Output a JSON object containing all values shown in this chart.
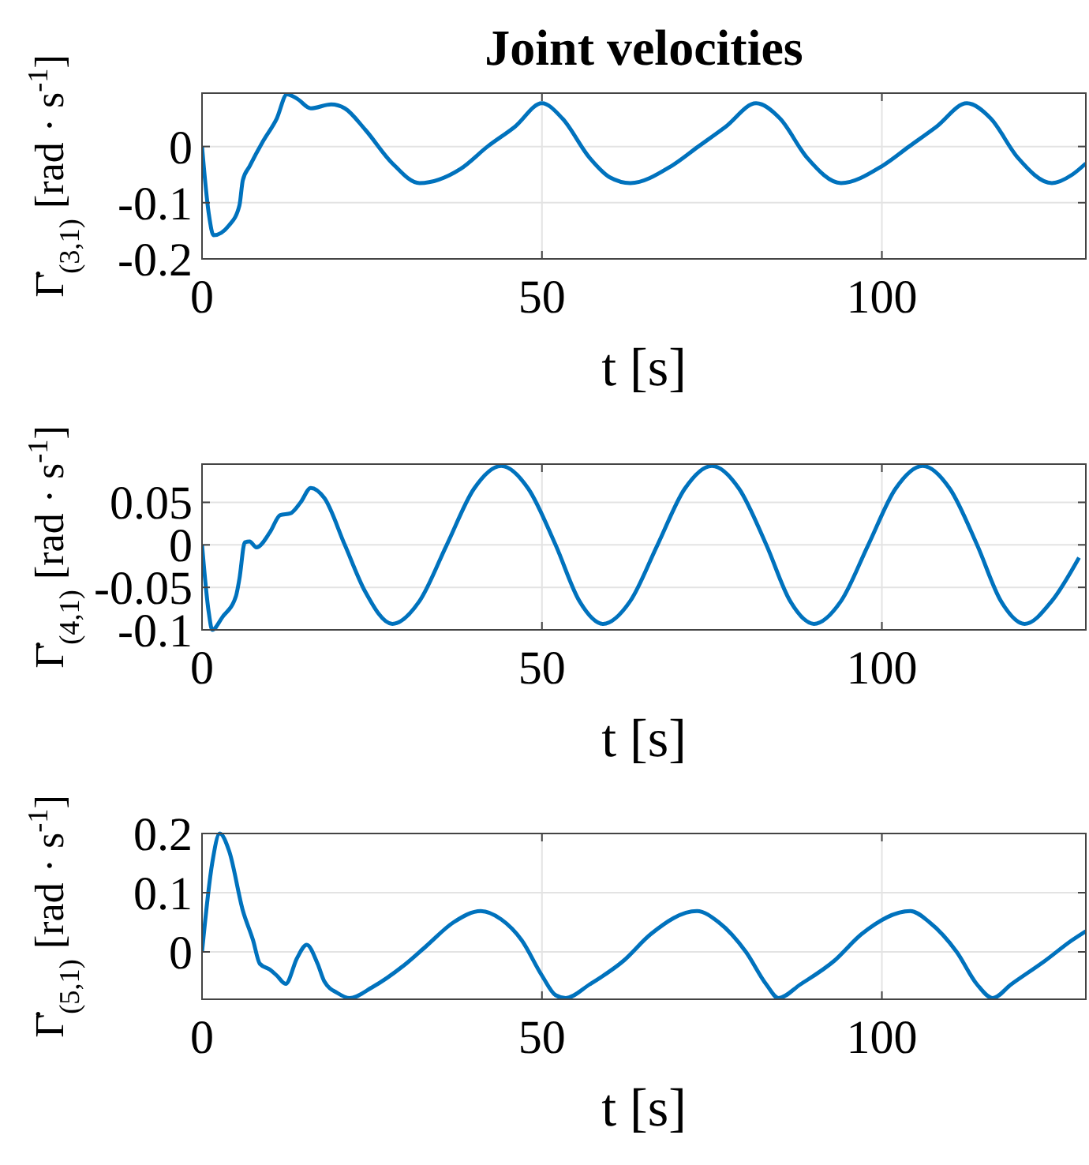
{
  "chart_data": [
    {
      "type": "line",
      "title": "Joint velocities",
      "xlabel": "t [s]",
      "ylabel": "Γ̇$_{(3,1)}$ [rad · s$^{-1}$]",
      "xlim": [
        0,
        130
      ],
      "xticks": [
        0,
        50,
        100
      ],
      "ylim": [
        -0.2,
        0.095
      ],
      "yticks": [
        -0.2,
        -0.1,
        0
      ],
      "grid": true,
      "series": [
        {
          "color": "#0072bd",
          "x": [
            0,
            1,
            1.7,
            4,
            5.5,
            6,
            7,
            9,
            11,
            12.5,
            14,
            16,
            19,
            21,
            24,
            28,
            32,
            38,
            42,
            46,
            50,
            53,
            57,
            60,
            63,
            69,
            73,
            77,
            81.5,
            85,
            89,
            94,
            100,
            104,
            108,
            112.5,
            116,
            120,
            125,
            128,
            130
          ],
          "values": [
            0,
            -0.12,
            -0.158,
            -0.14,
            -0.105,
            -0.06,
            -0.035,
            0.01,
            0.05,
            0.093,
            0.085,
            0.068,
            0.075,
            0.068,
            0.03,
            -0.03,
            -0.065,
            -0.04,
            0,
            0.035,
            0.077,
            0.05,
            -0.02,
            -0.055,
            -0.065,
            -0.035,
            0,
            0.035,
            0.077,
            0.05,
            -0.02,
            -0.065,
            -0.035,
            0,
            0.035,
            0.077,
            0.05,
            -0.02,
            -0.065,
            -0.05,
            -0.03
          ]
        }
      ]
    },
    {
      "type": "line",
      "xlabel": "t [s]",
      "ylabel": "Γ̇$_{(4,1)}$ [rad · s$^{-1}$]",
      "xlim": [
        0,
        130
      ],
      "xticks": [
        0,
        50,
        100
      ],
      "ylim": [
        -0.1,
        0.095
      ],
      "yticks": [
        -0.1,
        -0.05,
        0,
        0.05
      ],
      "grid": true,
      "series": [
        {
          "color": "#0072bd",
          "x": [
            0,
            1,
            1.5,
            3,
            5,
            5.5,
            6.3,
            7,
            8,
            10,
            11.5,
            13,
            14.5,
            16,
            18,
            21,
            24,
            28,
            32,
            36,
            40,
            44,
            48,
            52,
            55.5,
            59,
            63,
            67,
            71,
            75,
            79,
            83,
            86.5,
            90,
            94,
            98,
            102,
            106,
            110,
            114,
            117.5,
            121,
            125,
            129
          ],
          "values": [
            0,
            -0.08,
            -0.1,
            -0.085,
            -0.06,
            -0.04,
            0.003,
            0.004,
            -0.003,
            0.015,
            0.035,
            0.037,
            0.05,
            0.067,
            0.055,
            0,
            -0.055,
            -0.093,
            -0.066,
            0,
            0.066,
            0.093,
            0.066,
            0,
            -0.066,
            -0.093,
            -0.066,
            0,
            0.066,
            0.093,
            0.066,
            0,
            -0.066,
            -0.093,
            -0.066,
            0,
            0.066,
            0.093,
            0.066,
            0,
            -0.066,
            -0.093,
            -0.066,
            -0.015
          ]
        }
      ]
    },
    {
      "type": "line",
      "xlabel": "t [s]",
      "ylabel": "Γ̇$_{(5,1)}$ [rad · s$^{-1}$]",
      "xlim": [
        0,
        130
      ],
      "xticks": [
        0,
        50,
        100
      ],
      "ylim": [
        -0.08,
        0.2
      ],
      "yticks": [
        0,
        0.1,
        0.2
      ],
      "grid": true,
      "series": [
        {
          "color": "#0072bd",
          "x": [
            0,
            1.5,
            2.6,
            4,
            6,
            7.5,
            8.5,
            10,
            11,
            12.3,
            14,
            15.4,
            17,
            18,
            20,
            21.7,
            25,
            30,
            33,
            37,
            41,
            44,
            47,
            50,
            52,
            53.5,
            57,
            62,
            66,
            72.8,
            76,
            80,
            83,
            84.8,
            88,
            93,
            97,
            104.2,
            107,
            111,
            114,
            116.3,
            119,
            124,
            128,
            130
          ],
          "values": [
            0,
            0.15,
            0.2,
            0.17,
            0.07,
            0.02,
            -0.02,
            -0.03,
            -0.04,
            -0.054,
            -0.01,
            0.012,
            -0.02,
            -0.05,
            -0.07,
            -0.078,
            -0.06,
            -0.02,
            0.01,
            0.05,
            0.069,
            0.055,
            0.02,
            -0.04,
            -0.073,
            -0.078,
            -0.055,
            -0.015,
            0.03,
            0.069,
            0.05,
            0,
            -0.055,
            -0.078,
            -0.055,
            -0.015,
            0.03,
            0.069,
            0.05,
            0,
            -0.055,
            -0.078,
            -0.055,
            -0.015,
            0.02,
            0.035
          ]
        }
      ]
    }
  ]
}
